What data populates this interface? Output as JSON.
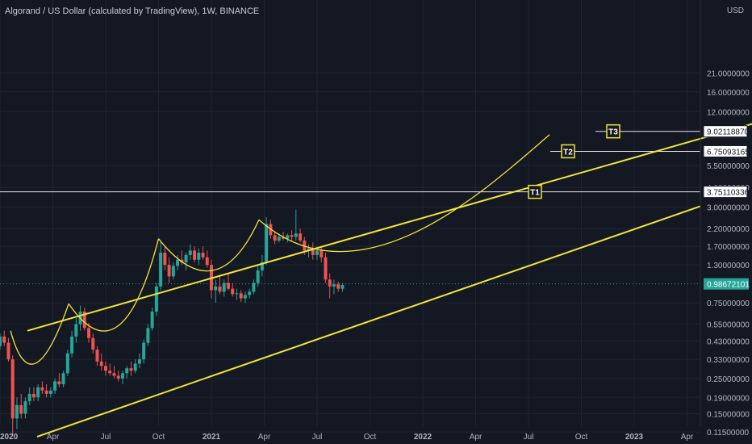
{
  "header": {
    "title": "Algorand / US Dollar (calculated by TradingView), 1W, BINANCE",
    "currency": "USD"
  },
  "colors": {
    "background": "#141823",
    "grid": "#1f2430",
    "axis_text": "#b2b5be",
    "up": "#26a69a",
    "down": "#ef5350",
    "channel": "#f2e43a",
    "target_line": "#e6e6e6",
    "price_badge": "#26a69a"
  },
  "chart_data": {
    "type": "candlestick",
    "title": "Algorand / US Dollar (calculated by TradingView), 1W, BINANCE",
    "yscale": "log",
    "ylim": [
      0.1,
      21.0
    ],
    "y_ticks": [
      "21.0000000",
      "16.0000000",
      "12.0000000",
      "5.50000000",
      "4.00000000",
      "3.00000000",
      "2.20000000",
      "1.70000000",
      "1.30000000",
      "0.75000000",
      "0.55000000",
      "0.43000000",
      "0.33000000",
      "0.25000000",
      "0.19000000",
      "0.15000000",
      "0.11500000"
    ],
    "x_ticks": [
      "2020",
      "Apr",
      "Jul",
      "Oct",
      "2021",
      "Apr",
      "Jul",
      "Oct",
      "2022",
      "Apr",
      "Jul",
      "Oct",
      "2023",
      "Apr"
    ],
    "current_price": "0.98672101",
    "targets": [
      {
        "label": "T1",
        "price": "3.75110336"
      },
      {
        "label": "T2",
        "price": "6.75093165"
      },
      {
        "label": "T3",
        "price": "9.02118870"
      }
    ],
    "channel": {
      "upper": [
        [
          0.0,
          0.5
        ],
        [
          14.3,
          10.2
        ]
      ],
      "lower": [
        [
          0.0,
          0.11
        ],
        [
          16.1,
          3.05
        ]
      ]
    },
    "cup_curves": [
      [
        [
          0.2,
          0.5
        ],
        [
          0.6,
          0.16
        ],
        [
          1.3,
          0.74
        ]
      ],
      [
        [
          1.3,
          0.74
        ],
        [
          2.3,
          0.24
        ],
        [
          3.0,
          1.9
        ]
      ],
      [
        [
          3.0,
          1.9
        ],
        [
          4.1,
          0.66
        ],
        [
          4.9,
          2.5
        ]
      ],
      [
        [
          4.9,
          2.5
        ],
        [
          6.8,
          0.69
        ],
        [
          9.2,
          3.9
        ],
        [
          10.4,
          8.6
        ]
      ]
    ],
    "candles": [
      {
        "t": -0.4,
        "o": 0.24,
        "h": 0.28,
        "l": 0.22,
        "c": 0.26
      },
      {
        "t": -0.32,
        "o": 0.26,
        "h": 0.3,
        "l": 0.24,
        "c": 0.29
      },
      {
        "t": -0.24,
        "o": 0.29,
        "h": 0.33,
        "l": 0.27,
        "c": 0.32
      },
      {
        "t": -0.16,
        "o": 0.32,
        "h": 0.36,
        "l": 0.3,
        "c": 0.34
      },
      {
        "t": -0.08,
        "o": 0.34,
        "h": 0.42,
        "l": 0.33,
        "c": 0.4
      },
      {
        "t": 0.0,
        "o": 0.4,
        "h": 0.48,
        "l": 0.38,
        "c": 0.46
      },
      {
        "t": 0.08,
        "o": 0.46,
        "h": 0.5,
        "l": 0.4,
        "c": 0.42
      },
      {
        "t": 0.16,
        "o": 0.42,
        "h": 0.45,
        "l": 0.32,
        "c": 0.33
      },
      {
        "t": 0.24,
        "o": 0.33,
        "h": 0.35,
        "l": 0.11,
        "c": 0.14
      },
      {
        "t": 0.32,
        "o": 0.14,
        "h": 0.19,
        "l": 0.12,
        "c": 0.17
      },
      {
        "t": 0.4,
        "o": 0.17,
        "h": 0.2,
        "l": 0.14,
        "c": 0.15
      },
      {
        "t": 0.48,
        "o": 0.15,
        "h": 0.19,
        "l": 0.14,
        "c": 0.18
      },
      {
        "t": 0.56,
        "o": 0.18,
        "h": 0.22,
        "l": 0.17,
        "c": 0.2
      },
      {
        "t": 0.64,
        "o": 0.2,
        "h": 0.22,
        "l": 0.18,
        "c": 0.19
      },
      {
        "t": 0.72,
        "o": 0.19,
        "h": 0.23,
        "l": 0.18,
        "c": 0.22
      },
      {
        "t": 0.8,
        "o": 0.22,
        "h": 0.24,
        "l": 0.2,
        "c": 0.21
      },
      {
        "t": 0.88,
        "o": 0.21,
        "h": 0.23,
        "l": 0.19,
        "c": 0.2
      },
      {
        "t": 0.96,
        "o": 0.2,
        "h": 0.22,
        "l": 0.19,
        "c": 0.21
      },
      {
        "t": 1.04,
        "o": 0.21,
        "h": 0.25,
        "l": 0.2,
        "c": 0.24
      },
      {
        "t": 1.12,
        "o": 0.24,
        "h": 0.27,
        "l": 0.22,
        "c": 0.23
      },
      {
        "t": 1.2,
        "o": 0.23,
        "h": 0.28,
        "l": 0.22,
        "c": 0.27
      },
      {
        "t": 1.28,
        "o": 0.27,
        "h": 0.38,
        "l": 0.26,
        "c": 0.36
      },
      {
        "t": 1.36,
        "o": 0.36,
        "h": 0.5,
        "l": 0.34,
        "c": 0.46
      },
      {
        "t": 1.44,
        "o": 0.46,
        "h": 0.6,
        "l": 0.42,
        "c": 0.55
      },
      {
        "t": 1.52,
        "o": 0.55,
        "h": 0.72,
        "l": 0.5,
        "c": 0.66
      },
      {
        "t": 1.6,
        "o": 0.66,
        "h": 0.7,
        "l": 0.5,
        "c": 0.52
      },
      {
        "t": 1.68,
        "o": 0.52,
        "h": 0.56,
        "l": 0.42,
        "c": 0.45
      },
      {
        "t": 1.76,
        "o": 0.45,
        "h": 0.48,
        "l": 0.36,
        "c": 0.38
      },
      {
        "t": 1.84,
        "o": 0.38,
        "h": 0.4,
        "l": 0.3,
        "c": 0.32
      },
      {
        "t": 1.92,
        "o": 0.32,
        "h": 0.36,
        "l": 0.28,
        "c": 0.3
      },
      {
        "t": 2.0,
        "o": 0.3,
        "h": 0.32,
        "l": 0.26,
        "c": 0.28
      },
      {
        "t": 2.08,
        "o": 0.28,
        "h": 0.31,
        "l": 0.26,
        "c": 0.27
      },
      {
        "t": 2.16,
        "o": 0.27,
        "h": 0.3,
        "l": 0.25,
        "c": 0.26
      },
      {
        "t": 2.24,
        "o": 0.26,
        "h": 0.28,
        "l": 0.24,
        "c": 0.25
      },
      {
        "t": 2.32,
        "o": 0.25,
        "h": 0.28,
        "l": 0.23,
        "c": 0.27
      },
      {
        "t": 2.4,
        "o": 0.27,
        "h": 0.3,
        "l": 0.25,
        "c": 0.29
      },
      {
        "t": 2.48,
        "o": 0.29,
        "h": 0.32,
        "l": 0.26,
        "c": 0.28
      },
      {
        "t": 2.56,
        "o": 0.28,
        "h": 0.33,
        "l": 0.27,
        "c": 0.31
      },
      {
        "t": 2.64,
        "o": 0.31,
        "h": 0.36,
        "l": 0.29,
        "c": 0.33
      },
      {
        "t": 2.72,
        "o": 0.33,
        "h": 0.44,
        "l": 0.31,
        "c": 0.42
      },
      {
        "t": 2.8,
        "o": 0.42,
        "h": 0.55,
        "l": 0.4,
        "c": 0.52
      },
      {
        "t": 2.88,
        "o": 0.52,
        "h": 0.7,
        "l": 0.5,
        "c": 0.66
      },
      {
        "t": 2.96,
        "o": 0.66,
        "h": 1.0,
        "l": 0.62,
        "c": 0.95
      },
      {
        "t": 3.04,
        "o": 0.95,
        "h": 1.8,
        "l": 0.9,
        "c": 1.55
      },
      {
        "t": 3.12,
        "o": 1.55,
        "h": 1.7,
        "l": 1.2,
        "c": 1.3
      },
      {
        "t": 3.2,
        "o": 1.3,
        "h": 1.45,
        "l": 1.0,
        "c": 1.1
      },
      {
        "t": 3.28,
        "o": 1.1,
        "h": 1.35,
        "l": 1.05,
        "c": 1.28
      },
      {
        "t": 3.36,
        "o": 1.28,
        "h": 1.5,
        "l": 1.2,
        "c": 1.4
      },
      {
        "t": 3.44,
        "o": 1.4,
        "h": 1.6,
        "l": 1.3,
        "c": 1.35
      },
      {
        "t": 3.52,
        "o": 1.35,
        "h": 1.55,
        "l": 1.2,
        "c": 1.5
      },
      {
        "t": 3.6,
        "o": 1.5,
        "h": 1.75,
        "l": 1.4,
        "c": 1.6
      },
      {
        "t": 3.68,
        "o": 1.6,
        "h": 1.7,
        "l": 1.35,
        "c": 1.4
      },
      {
        "t": 3.76,
        "o": 1.4,
        "h": 1.65,
        "l": 1.3,
        "c": 1.55
      },
      {
        "t": 3.84,
        "o": 1.55,
        "h": 1.7,
        "l": 1.4,
        "c": 1.45
      },
      {
        "t": 3.92,
        "o": 1.45,
        "h": 1.6,
        "l": 1.25,
        "c": 1.3
      },
      {
        "t": 4.0,
        "o": 1.3,
        "h": 1.4,
        "l": 0.8,
        "c": 0.9
      },
      {
        "t": 4.08,
        "o": 0.9,
        "h": 1.05,
        "l": 0.75,
        "c": 0.95
      },
      {
        "t": 4.16,
        "o": 0.95,
        "h": 1.1,
        "l": 0.85,
        "c": 0.88
      },
      {
        "t": 4.24,
        "o": 0.88,
        "h": 1.05,
        "l": 0.82,
        "c": 1.0
      },
      {
        "t": 4.32,
        "o": 1.0,
        "h": 1.15,
        "l": 0.9,
        "c": 0.92
      },
      {
        "t": 4.4,
        "o": 0.92,
        "h": 1.0,
        "l": 0.82,
        "c": 0.85
      },
      {
        "t": 4.48,
        "o": 0.85,
        "h": 0.92,
        "l": 0.78,
        "c": 0.86
      },
      {
        "t": 4.56,
        "o": 0.86,
        "h": 0.9,
        "l": 0.76,
        "c": 0.8
      },
      {
        "t": 4.64,
        "o": 0.8,
        "h": 0.88,
        "l": 0.75,
        "c": 0.84
      },
      {
        "t": 4.72,
        "o": 0.84,
        "h": 0.92,
        "l": 0.8,
        "c": 0.88
      },
      {
        "t": 4.8,
        "o": 0.88,
        "h": 1.05,
        "l": 0.85,
        "c": 1.0
      },
      {
        "t": 4.88,
        "o": 1.0,
        "h": 1.3,
        "l": 0.95,
        "c": 1.2
      },
      {
        "t": 4.96,
        "o": 1.2,
        "h": 1.5,
        "l": 1.1,
        "c": 1.35
      },
      {
        "t": 5.04,
        "o": 1.35,
        "h": 2.6,
        "l": 1.3,
        "c": 2.35
      },
      {
        "t": 5.12,
        "o": 2.35,
        "h": 2.5,
        "l": 1.9,
        "c": 2.0
      },
      {
        "t": 5.2,
        "o": 2.0,
        "h": 2.1,
        "l": 1.75,
        "c": 1.85
      },
      {
        "t": 5.28,
        "o": 1.85,
        "h": 2.05,
        "l": 1.8,
        "c": 1.95
      },
      {
        "t": 5.36,
        "o": 1.95,
        "h": 2.1,
        "l": 1.85,
        "c": 1.9
      },
      {
        "t": 5.44,
        "o": 1.9,
        "h": 2.05,
        "l": 1.8,
        "c": 2.0
      },
      {
        "t": 5.52,
        "o": 2.0,
        "h": 2.15,
        "l": 1.85,
        "c": 1.95
      },
      {
        "t": 5.6,
        "o": 1.95,
        "h": 2.9,
        "l": 1.85,
        "c": 2.05
      },
      {
        "t": 5.68,
        "o": 2.05,
        "h": 2.2,
        "l": 1.8,
        "c": 1.85
      },
      {
        "t": 5.76,
        "o": 1.85,
        "h": 1.95,
        "l": 1.5,
        "c": 1.6
      },
      {
        "t": 5.84,
        "o": 1.6,
        "h": 1.75,
        "l": 1.45,
        "c": 1.65
      },
      {
        "t": 5.92,
        "o": 1.65,
        "h": 1.8,
        "l": 1.4,
        "c": 1.5
      },
      {
        "t": 6.0,
        "o": 1.5,
        "h": 1.7,
        "l": 1.4,
        "c": 1.6
      },
      {
        "t": 6.08,
        "o": 1.6,
        "h": 1.7,
        "l": 1.35,
        "c": 1.45
      },
      {
        "t": 6.16,
        "o": 1.45,
        "h": 1.55,
        "l": 1.0,
        "c": 1.05
      },
      {
        "t": 6.24,
        "o": 1.05,
        "h": 1.15,
        "l": 0.8,
        "c": 0.95
      },
      {
        "t": 6.32,
        "o": 0.95,
        "h": 1.05,
        "l": 0.85,
        "c": 0.98
      },
      {
        "t": 6.4,
        "o": 0.98,
        "h": 1.02,
        "l": 0.88,
        "c": 0.92
      },
      {
        "t": 6.48,
        "o": 0.92,
        "h": 1.0,
        "l": 0.88,
        "c": 0.97
      }
    ]
  }
}
